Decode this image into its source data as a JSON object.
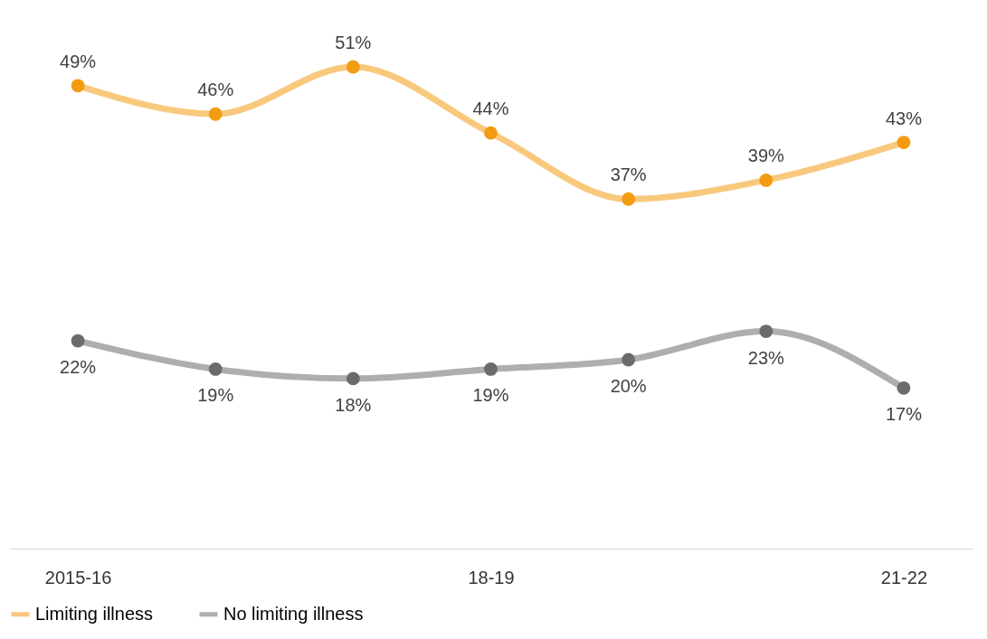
{
  "chart_data": {
    "type": "line",
    "categories": [
      "2015-16",
      null,
      null,
      "18-19",
      null,
      null,
      "21-22"
    ],
    "series": [
      {
        "name": "Limiting illness",
        "color": "#f39c12",
        "values": [
          49,
          46,
          51,
          44,
          37,
          39,
          43
        ],
        "value_labels": [
          "49%",
          "46%",
          "51%",
          "44%",
          "37%",
          "39%",
          "43%"
        ]
      },
      {
        "name": "No limiting illness",
        "color": "#6b6b6b",
        "values": [
          22,
          19,
          18,
          19,
          20,
          23,
          17
        ],
        "value_labels": [
          "22%",
          "19%",
          "18%",
          "19%",
          "20%",
          "23%",
          "17%"
        ]
      }
    ],
    "marker": "circle",
    "line_style": "solid",
    "legend": "bottom",
    "grid": false
  }
}
